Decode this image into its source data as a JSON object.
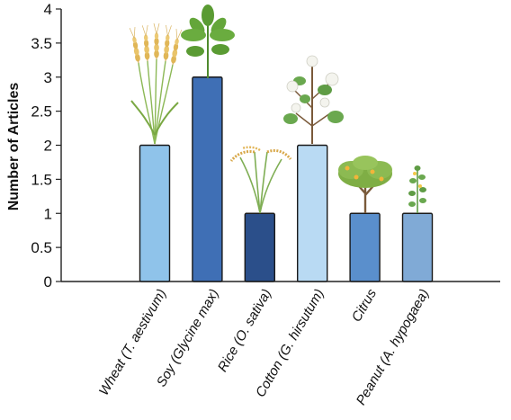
{
  "chart_data": {
    "type": "bar",
    "title": "",
    "xlabel": "",
    "ylabel": "Number of Articles",
    "ylim": [
      0,
      4
    ],
    "yticks": [
      "0",
      "0.5",
      "1",
      "1.5",
      "2",
      "2.5",
      "3",
      "3.5",
      "4"
    ],
    "categories": [
      "Wheat (T. aestivum)",
      "Soy (Glycine max)",
      "Rice (O. sativa)",
      "Cotton (G. hirsutum)",
      "Citrus",
      "Peanut (A. hypogaea)"
    ],
    "values": [
      2,
      3,
      1,
      2,
      1,
      1
    ],
    "bar_colors": [
      "#8fc3ea",
      "#3f6fb5",
      "#2b4f8a",
      "#b9daf3",
      "#5a8fcc",
      "#80aad6"
    ],
    "plant_icons": [
      "wheat-plant-icon",
      "soybean-plant-icon",
      "rice-plant-icon",
      "cotton-plant-icon",
      "citrus-tree-icon",
      "peanut-plant-icon"
    ],
    "grid": false,
    "legend": "none"
  }
}
